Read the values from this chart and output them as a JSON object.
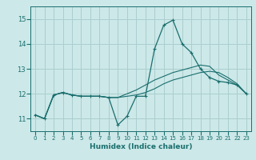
{
  "xlabel": "Humidex (Indice chaleur)",
  "ylabel": "",
  "xlim": [
    -0.5,
    23.5
  ],
  "ylim": [
    10.5,
    15.5
  ],
  "yticks": [
    11,
    12,
    13,
    14,
    15
  ],
  "xticks": [
    0,
    1,
    2,
    3,
    4,
    5,
    6,
    7,
    8,
    9,
    10,
    11,
    12,
    13,
    14,
    15,
    16,
    17,
    18,
    19,
    20,
    21,
    22,
    23
  ],
  "background_color": "#cce8e8",
  "grid_color": "#aacece",
  "line_color": "#1a6e6e",
  "line1_y": [
    11.15,
    11.0,
    11.95,
    12.05,
    11.95,
    11.9,
    11.9,
    11.9,
    11.85,
    10.75,
    11.1,
    11.9,
    11.9,
    13.8,
    14.75,
    14.95,
    14.0,
    13.65,
    13.0,
    12.65,
    12.5,
    12.45,
    12.35,
    12.0
  ],
  "line2_y": [
    11.15,
    11.0,
    11.95,
    12.05,
    11.95,
    11.9,
    11.9,
    11.9,
    11.85,
    11.85,
    11.9,
    11.95,
    12.05,
    12.2,
    12.4,
    12.55,
    12.65,
    12.75,
    12.85,
    12.9,
    12.85,
    12.65,
    12.4,
    12.0
  ],
  "line3_y": [
    11.15,
    11.0,
    11.95,
    12.05,
    11.95,
    11.9,
    11.9,
    11.9,
    11.85,
    11.85,
    12.0,
    12.15,
    12.35,
    12.55,
    12.7,
    12.85,
    12.95,
    13.05,
    13.15,
    13.1,
    12.75,
    12.55,
    12.35,
    12.0
  ]
}
